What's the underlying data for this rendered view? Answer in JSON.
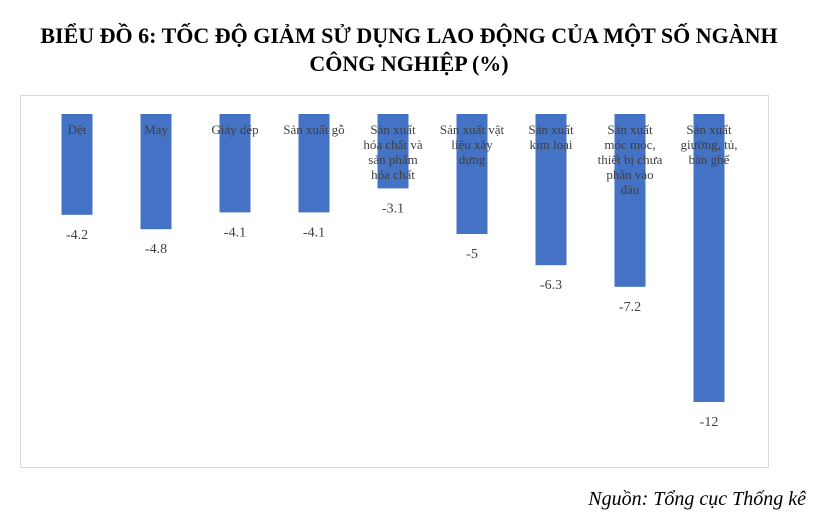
{
  "title": {
    "line1": "BIỂU ĐỒ 6: TỐC ĐỘ GIẢM SỬ DỤNG LAO ĐỘNG CỦA MỘT SỐ NGÀNH",
    "line2": "CÔNG NGHIỆP (%)"
  },
  "source": "Nguồn: Tổng cục Thống kê",
  "colors": {
    "bar": "#4472C4",
    "label": "#404040"
  },
  "chart_data": {
    "type": "bar",
    "categories": [
      [
        "Dệt"
      ],
      [
        "May"
      ],
      [
        "Giày dép"
      ],
      [
        "Sản xuất gỗ"
      ],
      [
        "Sản xuất",
        "hóa chất và",
        "sản phẩm",
        "hóa chất"
      ],
      [
        "Sản xuất vật",
        "liệu xây",
        "dựng"
      ],
      [
        "Sản xuất",
        "kim loại"
      ],
      [
        "Sản xuất",
        "móc móc,",
        "thiết bị chưa",
        "phân vào",
        "đâu"
      ],
      [
        "Sản xuất",
        "giường, tủ,",
        "bàn ghế"
      ]
    ],
    "values": [
      -4.2,
      -4.8,
      -4.1,
      -4.1,
      -3.1,
      -5,
      -6.3,
      -7.2,
      -12
    ],
    "value_labels": [
      "-4.2",
      "-4.8",
      "-4.1",
      "-4.1",
      "-3.1",
      "-5",
      "-6.3",
      "-7.2",
      "-12"
    ],
    "ylim": [
      -12,
      0
    ],
    "grid": false,
    "legend": "none"
  }
}
